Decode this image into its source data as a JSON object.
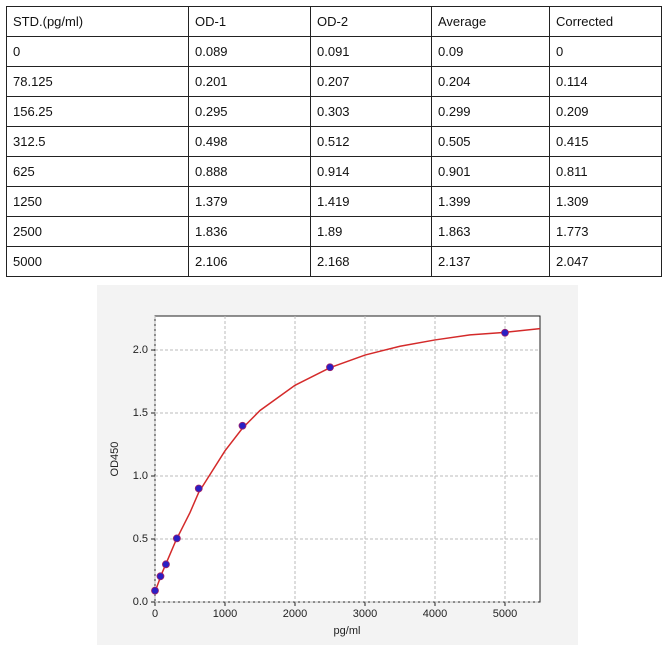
{
  "table": {
    "header": [
      "STD.(pg/ml)",
      "OD-1",
      "OD-2",
      "Average",
      "Corrected"
    ],
    "rows": [
      [
        "0",
        "0.089",
        "0.091",
        "0.09",
        "0"
      ],
      [
        "78.125",
        "0.201",
        "0.207",
        "0.204",
        "0.114"
      ],
      [
        "156.25",
        "0.295",
        "0.303",
        "0.299",
        "0.209"
      ],
      [
        "312.5",
        "0.498",
        "0.512",
        "0.505",
        "0.415"
      ],
      [
        "625",
        "0.888",
        "0.914",
        "0.901",
        "0.811"
      ],
      [
        "1250",
        "1.379",
        "1.419",
        "1.399",
        "1.309"
      ],
      [
        "2500",
        "1.836",
        "1.89",
        "1.863",
        "1.773"
      ],
      [
        "5000",
        "2.106",
        "2.168",
        "2.137",
        "2.047"
      ]
    ]
  },
  "chart_data": {
    "type": "scatter",
    "x_label": "pg/ml",
    "y_label": "OD450",
    "xlim": [
      0,
      5500
    ],
    "ylim": [
      0,
      2.27
    ],
    "xticks": [
      0,
      1000,
      2000,
      3000,
      4000,
      5000
    ],
    "yticks": [
      {
        "value": 0,
        "label": "0.0"
      },
      0.5,
      {
        "value": 1,
        "label": "1.0"
      },
      1.5,
      {
        "value": 2,
        "label": "2.0"
      }
    ],
    "grid": true,
    "points": {
      "color": "#2a1fc4",
      "x": [
        0,
        78.125,
        156.25,
        312.5,
        625,
        1250,
        2500,
        5000
      ],
      "y": [
        0.09,
        0.204,
        0.299,
        0.505,
        0.901,
        1.399,
        1.863,
        2.137
      ]
    },
    "curve": {
      "color": "#d42a2a",
      "x": [
        0,
        100,
        200,
        300,
        400,
        500,
        625,
        750,
        1000,
        1250,
        1500,
        2000,
        2500,
        3000,
        3500,
        4000,
        4500,
        5000,
        5500
      ],
      "y": [
        0.08,
        0.23,
        0.36,
        0.49,
        0.6,
        0.71,
        0.87,
        0.98,
        1.2,
        1.38,
        1.52,
        1.72,
        1.86,
        1.96,
        2.03,
        2.08,
        2.12,
        2.14,
        2.17
      ]
    }
  }
}
